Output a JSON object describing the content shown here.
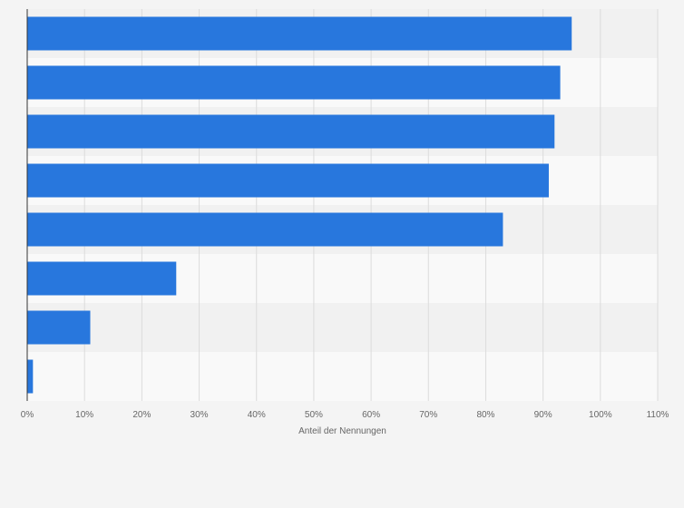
{
  "chart_data": {
    "type": "bar",
    "orientation": "horizontal",
    "categories": [
      "",
      "",
      "",
      "",
      "",
      "",
      "",
      ""
    ],
    "values": [
      95,
      93,
      92,
      91,
      83,
      26,
      11,
      1
    ],
    "xlabel": "Anteil der Nennungen",
    "ylabel": "",
    "xlim": [
      0,
      110
    ],
    "xticks": [
      "0%",
      "10%",
      "20%",
      "30%",
      "40%",
      "50%",
      "60%",
      "70%",
      "80%",
      "90%",
      "100%",
      "110%"
    ],
    "grid": "vertical",
    "legend": "none",
    "colors": {
      "bar": "#2877dd",
      "band_dark": "#f1f1f1",
      "band_light": "#f9f9f9",
      "grid": "#dcdcdc",
      "axis": "#333333",
      "background": "#f4f4f4"
    }
  }
}
